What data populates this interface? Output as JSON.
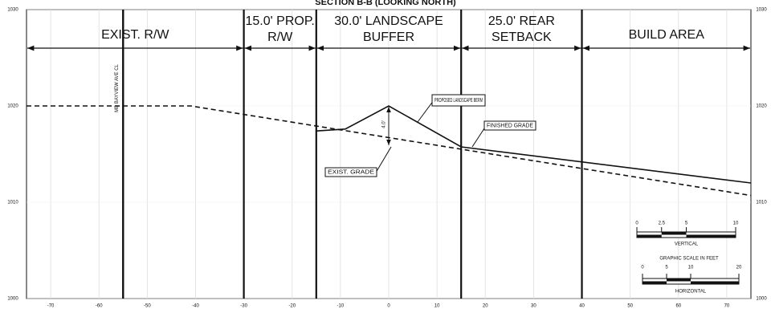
{
  "chart_data": {
    "type": "line",
    "title": "SECTION B-B (LOOKING NORTH)",
    "xlim": [
      -75,
      75
    ],
    "xticks": [
      -70,
      -60,
      -50,
      -40,
      -30,
      -20,
      -10,
      0,
      10,
      20,
      30,
      40,
      50,
      60,
      70
    ],
    "ylim": [
      1000,
      1030
    ],
    "yticks": [
      1000,
      1010,
      1020,
      1030
    ],
    "grid": true,
    "series": [
      {
        "name": "EXIST. GRADE",
        "color": "#111111",
        "style": "dashed",
        "x": [
          -75,
          -41,
          75
        ],
        "values": [
          1020,
          1020,
          1010.7
        ]
      },
      {
        "name": "FINISHED GRADE",
        "color": "#111111",
        "style": "solid",
        "x": [
          -15,
          -9,
          0,
          15,
          75
        ],
        "values": [
          1017.4,
          1017.6,
          1020,
          1015.75,
          1012
        ]
      }
    ],
    "centerline": {
      "x": -55,
      "label": "MB BAYVIEW AVE CL"
    },
    "zone_edges": [
      -30,
      -15,
      15,
      40
    ],
    "zones": [
      [
        "EXIST. R/W"
      ],
      [
        "15.0' PROP.",
        "R/W"
      ],
      [
        "30.0' LANDSCAPE",
        "BUFFER"
      ],
      [
        "25.0' REAR",
        "SETBACK"
      ],
      [
        "BUILD AREA"
      ]
    ],
    "berm_label": "PROPOSED LANDSCAPE BERM",
    "berm_height": "4.0'",
    "graphic_scale": {
      "title": "GRAPHIC SCALE IN FEET",
      "vertical": {
        "ticks": [
          "0",
          "2.5",
          "5",
          "10"
        ],
        "label": "VERTICAL"
      },
      "horizontal": {
        "ticks": [
          "0",
          "5",
          "10",
          "20"
        ],
        "label": "HORIZONTAL"
      }
    }
  }
}
